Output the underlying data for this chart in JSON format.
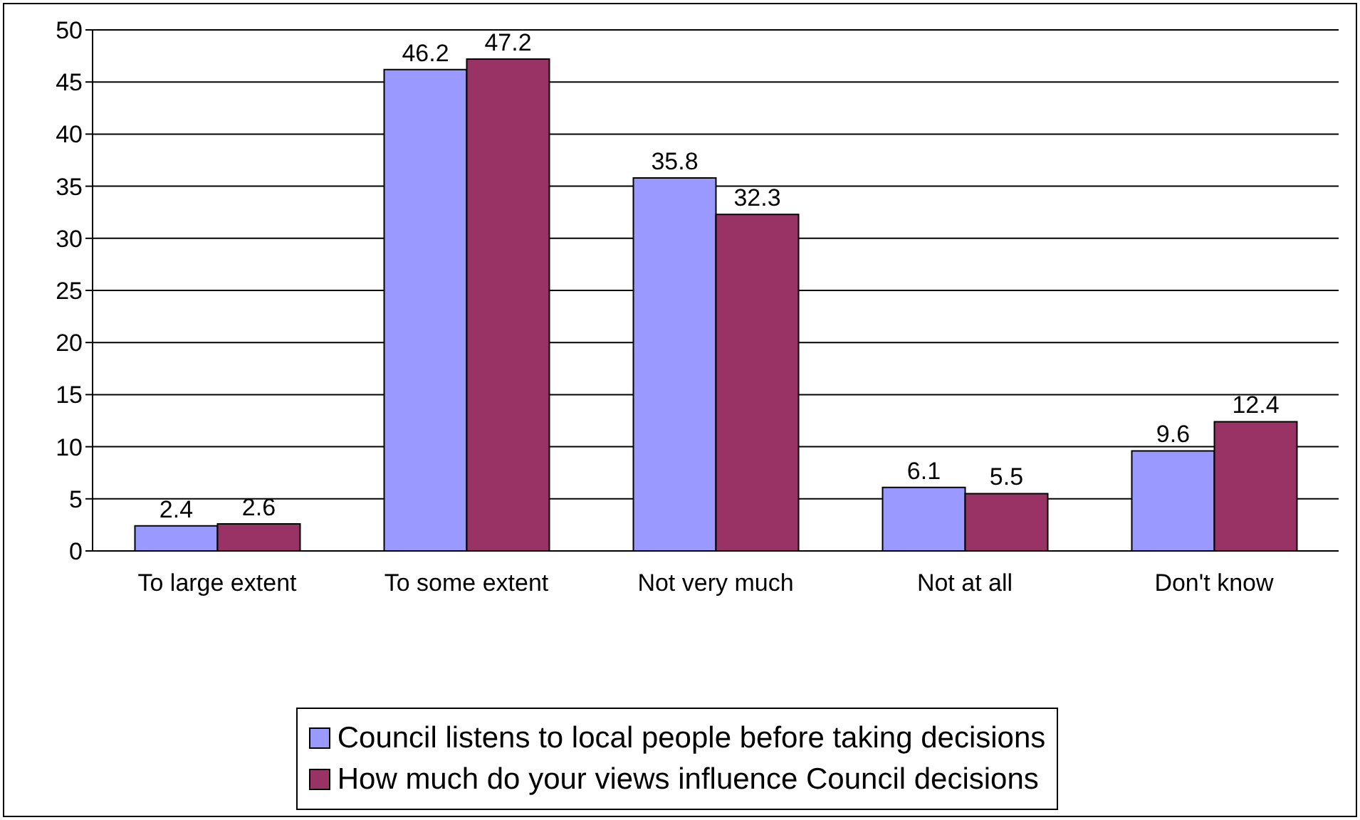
{
  "chart_data": {
    "type": "bar",
    "categories": [
      "To large extent",
      "To some extent",
      "Not very much",
      "Not at all",
      "Don't know"
    ],
    "series": [
      {
        "name": "Council listens to local people before taking decisions",
        "color": "#9999ff",
        "values": [
          2.4,
          46.2,
          35.8,
          6.1,
          9.6
        ]
      },
      {
        "name": "How much do your views influence Council decisions",
        "color": "#993366",
        "values": [
          2.6,
          47.2,
          32.3,
          5.5,
          12.4
        ]
      }
    ],
    "ylim": [
      0,
      50
    ],
    "yticks": [
      0,
      5,
      10,
      15,
      20,
      25,
      30,
      35,
      40,
      45,
      50
    ],
    "grid": "y",
    "legend": "bottom",
    "data_labels": true
  }
}
